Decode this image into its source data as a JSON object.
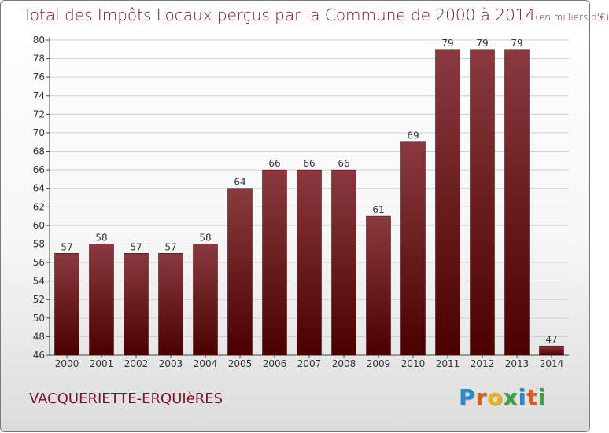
{
  "title": "Total des Impôts Locaux perçus par la Commune de 2000 à 2014",
  "title_unit": "(en milliers d'€)",
  "commune": "VACQUERIETTE-ERQUIèRES",
  "logo": {
    "letters": [
      "P",
      "r",
      "o",
      "x",
      "i",
      "t",
      "i"
    ],
    "colors": [
      "#2a8ad1",
      "#e05a1e",
      "#e8b21a",
      "#3aa53a",
      "#2a8ad1",
      "#e05a1e",
      "#3aa53a"
    ]
  },
  "colors": {
    "bar_top": "#8a3a3f",
    "bar_bottom": "#4a0000",
    "text": "#7a1426",
    "grid": "#cfcfcf"
  },
  "chart_data": {
    "type": "bar",
    "title": "Total des Impôts Locaux perçus par la Commune de 2000 à 2014 (en milliers d'€)",
    "xlabel": "",
    "ylabel": "",
    "categories": [
      "2000",
      "2001",
      "2002",
      "2003",
      "2004",
      "2005",
      "2006",
      "2007",
      "2008",
      "2009",
      "2010",
      "2011",
      "2012",
      "2013",
      "2014"
    ],
    "values": [
      57,
      58,
      57,
      57,
      58,
      64,
      66,
      66,
      66,
      61,
      69,
      79,
      79,
      79,
      47
    ],
    "ylim": [
      46,
      80
    ],
    "yticks": [
      46,
      48,
      50,
      52,
      54,
      56,
      58,
      60,
      62,
      64,
      66,
      68,
      70,
      72,
      74,
      76,
      78,
      80
    ],
    "grid": true
  }
}
